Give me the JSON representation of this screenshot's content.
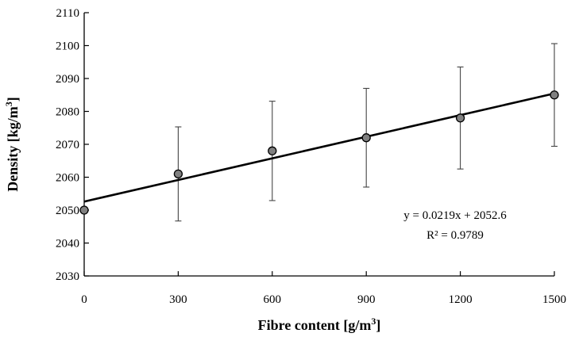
{
  "chart_data": {
    "type": "scatter",
    "title": "",
    "xlabel": "Fibre content [g/m",
    "xlabel_sup": "3",
    "xlabel_end": "]",
    "ylabel": "Density [kg/m",
    "ylabel_sup": "3",
    "ylabel_end": "]",
    "xlim": [
      0,
      1500
    ],
    "ylim": [
      2030,
      2110
    ],
    "x_ticks": [
      0,
      300,
      600,
      900,
      1200,
      1500
    ],
    "y_ticks": [
      2030,
      2040,
      2050,
      2060,
      2070,
      2080,
      2090,
      2100,
      2110
    ],
    "grid": false,
    "legend": "none",
    "series": [
      {
        "x": [
          0,
          300,
          600,
          900,
          1200,
          1500
        ],
        "y": [
          2050,
          2061,
          2068,
          2072,
          2078,
          2085
        ],
        "error": [
          null,
          14.3,
          15.1,
          15.0,
          15.5,
          15.6
        ],
        "marker_color": "#808080"
      }
    ],
    "trendline": {
      "slope": 0.0219,
      "intercept": 2052.6,
      "equation": "y = 0.0219x + 2052.6",
      "r_squared": "R² = 0.9789"
    }
  }
}
